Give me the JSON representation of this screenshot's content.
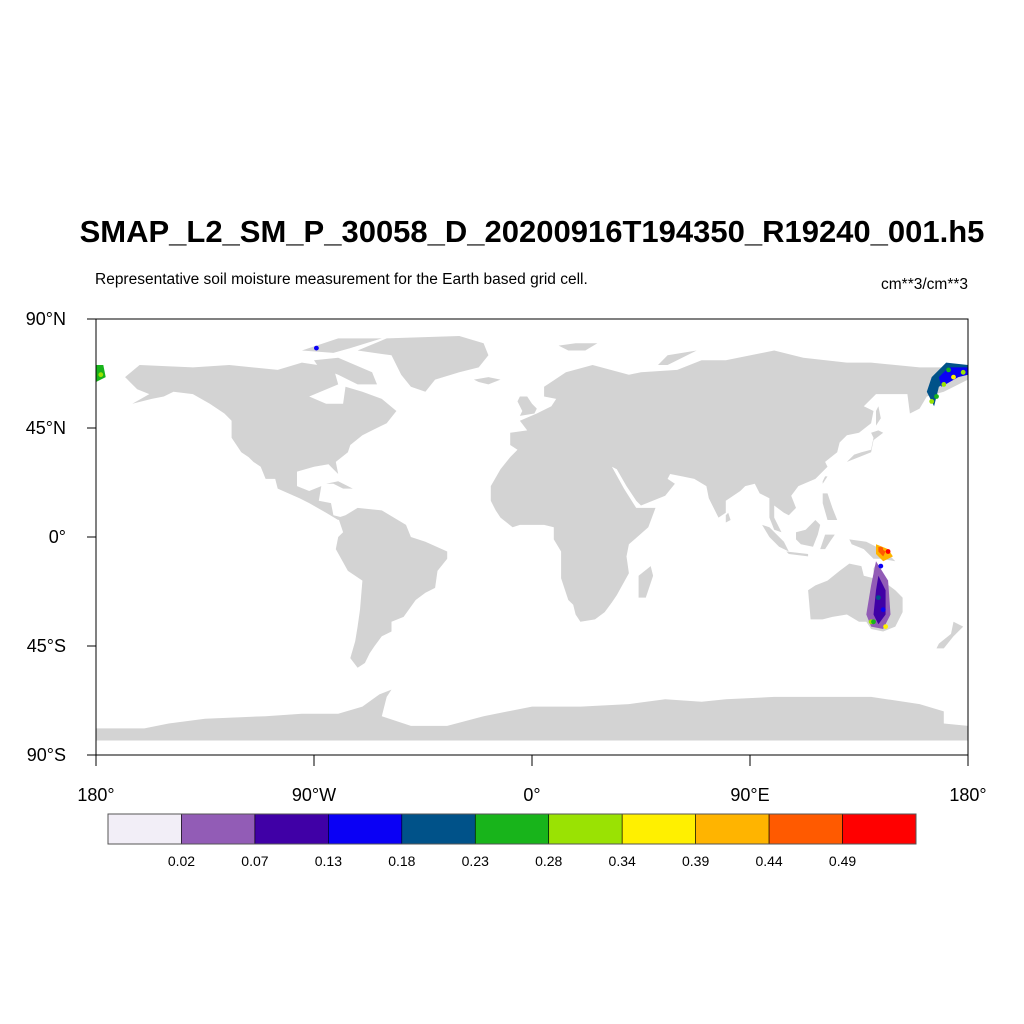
{
  "title": "SMAP_L2_SM_P_30058_D_20200916T194350_R19240_001.h5",
  "subtitle": "Representative soil moisture measurement for the Earth based grid cell.",
  "units": "cm**3/cm**3",
  "map": {
    "lat_range": [
      -90,
      90
    ],
    "lon_range": [
      -180,
      180
    ],
    "land_color": "#d3d3d3",
    "ocean_color": "#ffffff",
    "lat_ticks": [
      {
        "value": 90,
        "label": "90°N"
      },
      {
        "value": 45,
        "label": "45°N"
      },
      {
        "value": 0,
        "label": "0°"
      },
      {
        "value": -45,
        "label": "45°S"
      },
      {
        "value": -90,
        "label": "90°S"
      }
    ],
    "lon_ticks": [
      {
        "value": -180,
        "label": "180°"
      },
      {
        "value": -90,
        "label": "90°W"
      },
      {
        "value": 0,
        "label": "0°"
      },
      {
        "value": 90,
        "label": "90°E"
      },
      {
        "value": 180,
        "label": "180°"
      }
    ]
  },
  "colorbar": {
    "colors": [
      "#f2eef7",
      "#925cb6",
      "#4000a6",
      "#0a00f5",
      "#005289",
      "#18b41b",
      "#9ae203",
      "#fff000",
      "#ffb400",
      "#ff5a00",
      "#ff0000"
    ],
    "labels": [
      "0.02",
      "0.07",
      "0.13",
      "0.18",
      "0.23",
      "0.28",
      "0.34",
      "0.39",
      "0.44",
      "0.49"
    ]
  }
}
